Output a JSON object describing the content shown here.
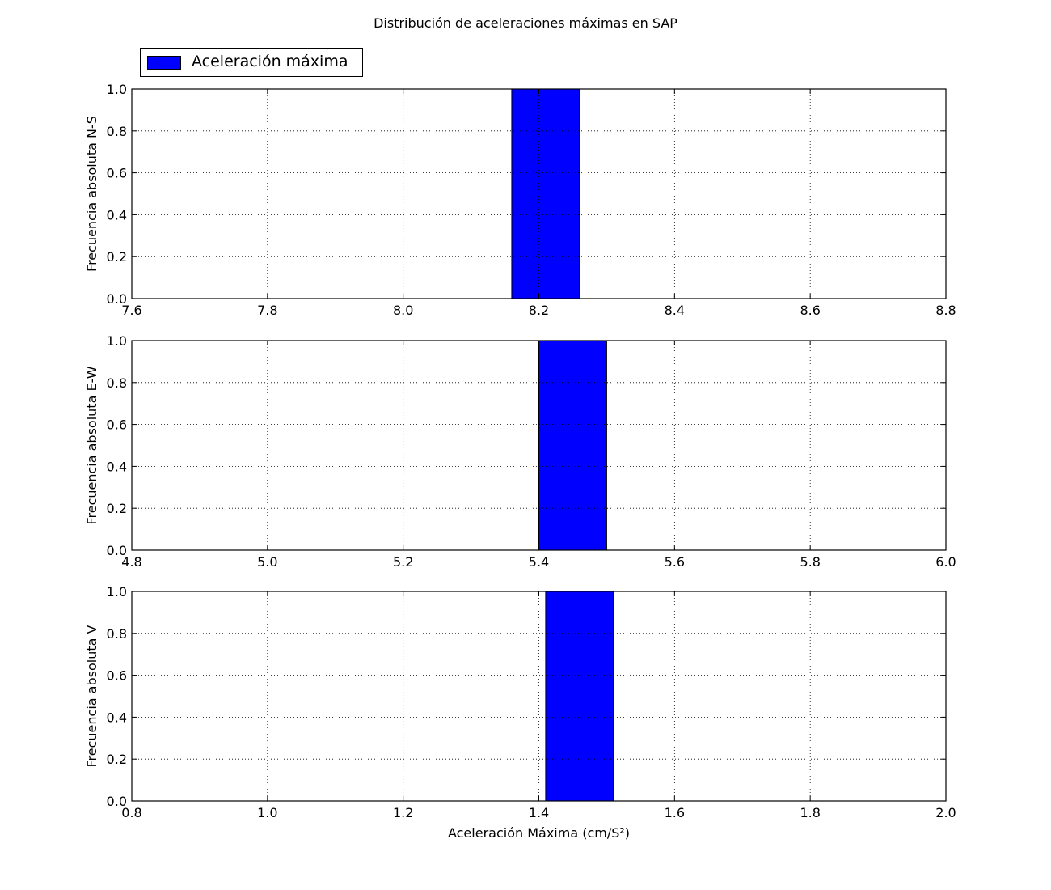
{
  "figure_title": "Distribución de aceleraciones máximas en SAP",
  "legend": {
    "label": "Aceleración máxima",
    "color": "#0000ff"
  },
  "chart_data": [
    {
      "type": "bar",
      "ylabel": "Frecuencia absoluta N-S",
      "xlabel": "",
      "xlim": [
        7.6,
        8.8
      ],
      "ylim": [
        0.0,
        1.0
      ],
      "xticks": [
        "7.6",
        "7.8",
        "8.0",
        "8.2",
        "8.4",
        "8.6",
        "8.8"
      ],
      "yticks": [
        "0.0",
        "0.2",
        "0.4",
        "0.6",
        "0.8",
        "1.0"
      ],
      "grid": true,
      "bins": [
        {
          "x0": 7.66,
          "x1": 7.76,
          "value": 0
        },
        {
          "x0": 7.76,
          "x1": 7.86,
          "value": 0
        },
        {
          "x0": 7.86,
          "x1": 7.96,
          "value": 0
        },
        {
          "x0": 7.96,
          "x1": 8.06,
          "value": 0
        },
        {
          "x0": 8.06,
          "x1": 8.16,
          "value": 0
        },
        {
          "x0": 8.16,
          "x1": 8.26,
          "value": 1
        },
        {
          "x0": 8.26,
          "x1": 8.36,
          "value": 0
        },
        {
          "x0": 8.36,
          "x1": 8.46,
          "value": 0
        },
        {
          "x0": 8.46,
          "x1": 8.56,
          "value": 0
        },
        {
          "x0": 8.56,
          "x1": 8.66,
          "value": 0
        }
      ]
    },
    {
      "type": "bar",
      "ylabel": "Frecuencia absoluta E-W",
      "xlabel": "",
      "xlim": [
        4.8,
        6.0
      ],
      "ylim": [
        0.0,
        1.0
      ],
      "xticks": [
        "4.8",
        "5.0",
        "5.2",
        "5.4",
        "5.6",
        "5.8",
        "6.0"
      ],
      "yticks": [
        "0.0",
        "0.2",
        "0.4",
        "0.6",
        "0.8",
        "1.0"
      ],
      "grid": true,
      "bins": [
        {
          "x0": 4.9,
          "x1": 5.0,
          "value": 0
        },
        {
          "x0": 5.0,
          "x1": 5.1,
          "value": 0
        },
        {
          "x0": 5.1,
          "x1": 5.2,
          "value": 0
        },
        {
          "x0": 5.2,
          "x1": 5.3,
          "value": 0
        },
        {
          "x0": 5.3,
          "x1": 5.4,
          "value": 0
        },
        {
          "x0": 5.4,
          "x1": 5.5,
          "value": 1
        },
        {
          "x0": 5.5,
          "x1": 5.6,
          "value": 0
        },
        {
          "x0": 5.6,
          "x1": 5.7,
          "value": 0
        },
        {
          "x0": 5.7,
          "x1": 5.8,
          "value": 0
        },
        {
          "x0": 5.8,
          "x1": 5.9,
          "value": 0
        }
      ]
    },
    {
      "type": "bar",
      "ylabel": "Frecuencia absoluta V",
      "xlabel": "Aceleración Máxima (cm/S²)",
      "xlim": [
        0.8,
        2.0
      ],
      "ylim": [
        0.0,
        1.0
      ],
      "xticks": [
        "0.8",
        "1.0",
        "1.2",
        "1.4",
        "1.6",
        "1.8",
        "2.0"
      ],
      "yticks": [
        "0.0",
        "0.2",
        "0.4",
        "0.6",
        "0.8",
        "1.0"
      ],
      "grid": true,
      "bins": [
        {
          "x0": 0.91,
          "x1": 1.01,
          "value": 0
        },
        {
          "x0": 1.01,
          "x1": 1.11,
          "value": 0
        },
        {
          "x0": 1.11,
          "x1": 1.21,
          "value": 0
        },
        {
          "x0": 1.21,
          "x1": 1.31,
          "value": 0
        },
        {
          "x0": 1.31,
          "x1": 1.41,
          "value": 0
        },
        {
          "x0": 1.41,
          "x1": 1.51,
          "value": 1
        },
        {
          "x0": 1.51,
          "x1": 1.61,
          "value": 0
        },
        {
          "x0": 1.61,
          "x1": 1.71,
          "value": 0
        },
        {
          "x0": 1.71,
          "x1": 1.81,
          "value": 0
        },
        {
          "x0": 1.81,
          "x1": 1.91,
          "value": 0
        }
      ]
    }
  ]
}
